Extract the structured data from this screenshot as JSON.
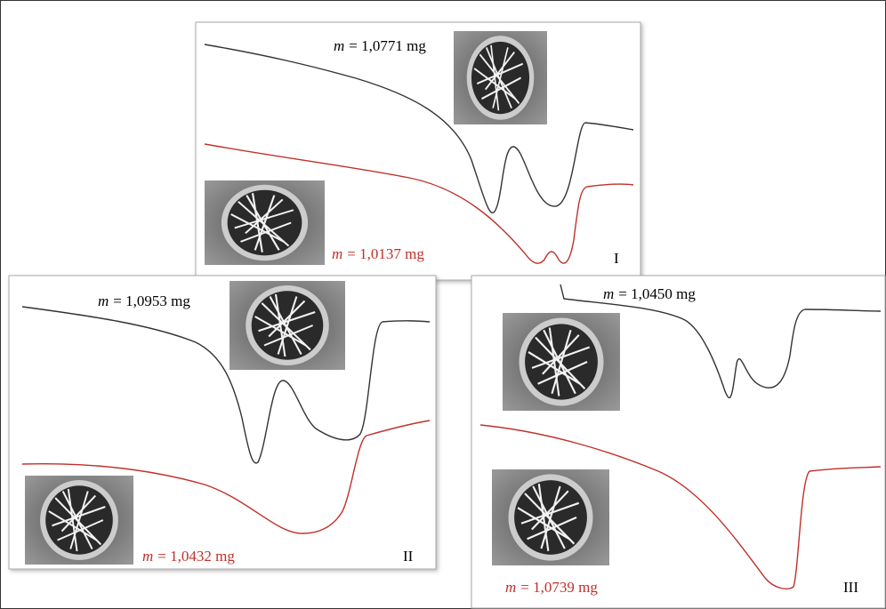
{
  "panels": [
    {
      "label": "I",
      "top_mass": {
        "symbol": "m",
        "text": "= 1,0771 mg"
      },
      "bottom_mass": {
        "symbol": "m",
        "text": "= 1,0137 mg"
      }
    },
    {
      "label": "II",
      "top_mass": {
        "symbol": "m",
        "text": "= 1,0953 mg"
      },
      "bottom_mass": {
        "symbol": "m",
        "text": "= 1,0432 mg"
      }
    },
    {
      "label": "III",
      "top_mass": {
        "symbol": "m",
        "text": "= 1,0450 mg"
      },
      "bottom_mass": {
        "symbol": "m",
        "text": "= 1,0739 mg"
      }
    }
  ]
}
